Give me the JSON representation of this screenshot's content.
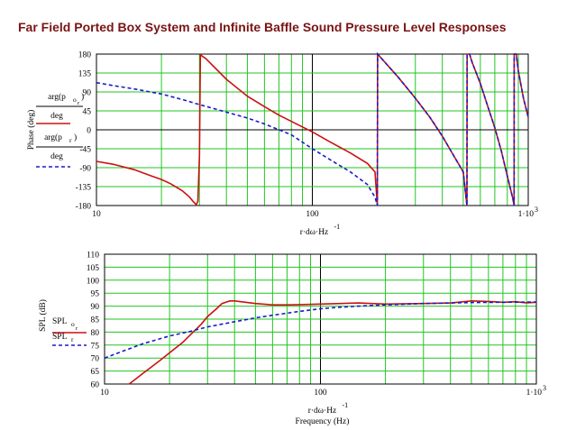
{
  "title": "Far Field Ported Box System and Infinite Baffle Sound Pressure Level Responses",
  "colors": {
    "grid": "#21c521",
    "red": "#cc1111",
    "blue": "#1a1acc",
    "axis": "#000000",
    "title": "#7a1414"
  },
  "chart_data": [
    {
      "type": "line",
      "name": "phase",
      "xscale": "log",
      "xlim": [
        10,
        1000
      ],
      "ylim": [
        -180,
        180
      ],
      "yticks": [
        -180,
        -135,
        -90,
        -45,
        0,
        45,
        90,
        135,
        180
      ],
      "xticks": [
        "10",
        "100",
        "1·10"
      ],
      "xtick_sup": "3",
      "ylabel": "Phase (deg)",
      "xlabel": "r·dω·Hz",
      "xlabel_sup": "-1",
      "legend": [
        {
          "num": "arg(p",
          "sub": "o",
          "subsub": "r",
          "close": ")",
          "den": "deg"
        },
        {
          "num": "arg(p",
          "sub": "r",
          "close": ")",
          "den": "deg"
        }
      ],
      "series": [
        {
          "name": "arg(p_o_r)/deg",
          "style": "solid",
          "color": "red",
          "x": [
            10,
            12,
            15,
            18,
            20,
            22,
            25,
            27,
            28,
            29,
            29.5,
            30,
            30.3,
            32,
            35,
            40,
            50,
            60,
            70,
            80,
            100,
            120,
            150,
            180,
            195,
            200,
            200.5,
            250,
            300,
            350,
            400,
            450,
            500,
            520,
            521,
            535,
            550,
            600,
            650,
            700,
            750,
            800,
            850,
            860,
            861,
            880,
            900,
            950,
            1000
          ],
          "y": [
            -75,
            -82,
            -95,
            -110,
            -118,
            -128,
            -145,
            -160,
            -170,
            -178,
            -170,
            -60,
            178,
            170,
            150,
            120,
            80,
            55,
            35,
            20,
            -5,
            -28,
            -55,
            -80,
            -100,
            -180,
            180,
            125,
            75,
            30,
            -15,
            -60,
            -100,
            -180,
            180,
            180,
            160,
            110,
            55,
            5,
            -50,
            -110,
            -165,
            -180,
            180,
            180,
            140,
            75,
            30
          ]
        },
        {
          "name": "arg(p_r)/deg",
          "style": "dashed",
          "color": "blue",
          "x": [
            10,
            12,
            15,
            20,
            25,
            30,
            40,
            50,
            60,
            70,
            80,
            100,
            120,
            150,
            180,
            195,
            200,
            200.5,
            250,
            300,
            350,
            400,
            450,
            500,
            520,
            521,
            535,
            550,
            600,
            650,
            700,
            750,
            800,
            850,
            860,
            861,
            880,
            900,
            950,
            1000
          ],
          "y": [
            112,
            105,
            97,
            85,
            72,
            60,
            42,
            28,
            14,
            0,
            -12,
            -45,
            -70,
            -100,
            -130,
            -160,
            -180,
            180,
            125,
            75,
            30,
            -15,
            -60,
            -100,
            -180,
            180,
            180,
            160,
            110,
            55,
            5,
            -50,
            -110,
            -165,
            -180,
            180,
            180,
            140,
            75,
            30
          ]
        }
      ]
    },
    {
      "type": "line",
      "name": "spl",
      "xscale": "log",
      "xlim": [
        10,
        1000
      ],
      "ylim": [
        60,
        110
      ],
      "yticks": [
        60,
        65,
        70,
        75,
        80,
        85,
        90,
        95,
        100,
        105,
        110
      ],
      "xticks": [
        "10",
        "100",
        "1·10"
      ],
      "xtick_sup": "3",
      "ylabel": "SPL (dB)",
      "xlabel": "r·dω·Hz",
      "xlabel_sup": "-1",
      "xlabel2": "Frequency (Hz)",
      "legend": [
        {
          "label": "SPL",
          "sub": "o",
          "subsub": "r"
        },
        {
          "label": "SPL",
          "sub": "r"
        }
      ],
      "series": [
        {
          "name": "SPL_o_r",
          "style": "solid",
          "color": "red",
          "x": [
            13,
            15,
            18,
            20,
            23,
            25,
            28,
            30,
            33,
            35,
            38,
            40,
            45,
            50,
            60,
            70,
            80,
            100,
            150,
            200,
            300,
            400,
            500,
            600,
            700,
            800,
            900,
            1000
          ],
          "y": [
            60,
            64,
            69,
            72,
            76,
            79,
            83,
            86,
            89,
            91,
            92,
            92,
            91.5,
            91,
            90.5,
            90.5,
            90.6,
            90.8,
            91.2,
            90.8,
            91,
            91.2,
            92,
            91.8,
            91.5,
            91.7,
            91.3,
            91.5
          ]
        },
        {
          "name": "SPL_r",
          "style": "dashed",
          "color": "blue",
          "x": [
            10,
            12,
            15,
            20,
            25,
            30,
            40,
            50,
            60,
            70,
            80,
            100,
            120,
            150,
            200,
            300,
            400,
            500,
            700,
            1000
          ],
          "y": [
            70,
            72.5,
            75.5,
            78.5,
            80.3,
            82,
            84,
            85.5,
            86.5,
            87.3,
            88,
            89,
            89.5,
            90,
            90.5,
            91,
            91.2,
            91.4,
            91.5,
            91.6
          ]
        }
      ]
    }
  ]
}
